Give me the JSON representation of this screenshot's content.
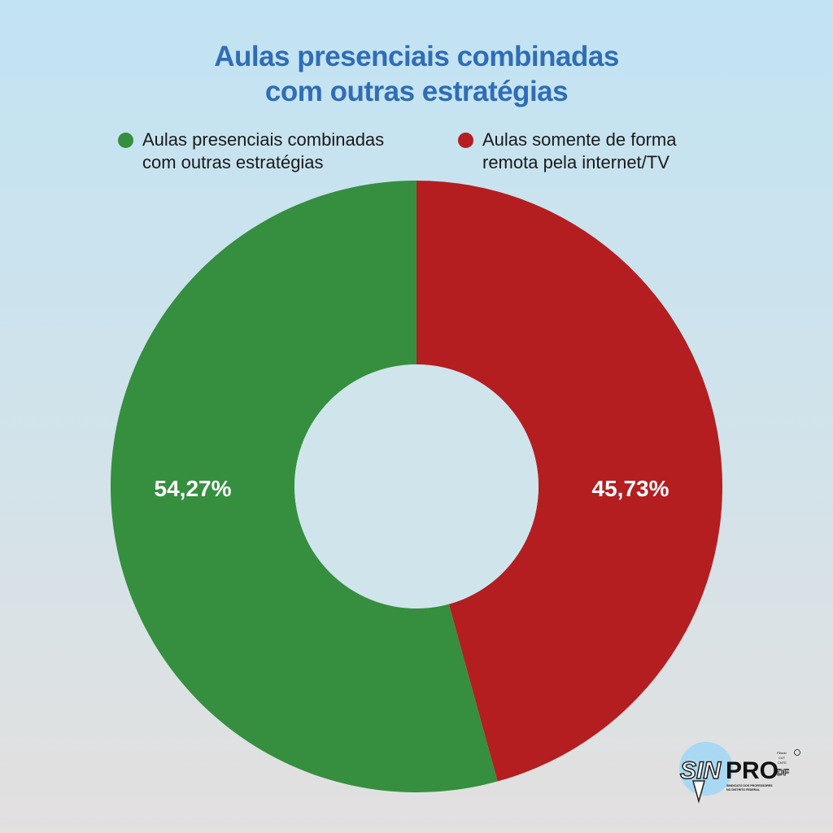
{
  "chart_data": {
    "type": "pie",
    "donut": true,
    "title": "Aulas presenciais combinadas com outras estratégias",
    "title_lines": [
      "Aulas presenciais combinadas",
      "com outras estratégias"
    ],
    "legend_position": "top",
    "slices": [
      {
        "label": "Aulas somente de forma remota pela internet/TV",
        "label_lines": [
          "Aulas somente de forma",
          "remota pela internet/TV"
        ],
        "value": 45.73,
        "value_label": "45,73%",
        "color": "#b41e21"
      },
      {
        "label": "Aulas presenciais combinadas com outras estratégias",
        "label_lines": [
          "Aulas presenciais combinadas",
          "com outras estratégias"
        ],
        "value": 54.27,
        "value_label": "54,27%",
        "color": "#358f3f"
      }
    ]
  },
  "logo": {
    "name": "SIN",
    "name2": "PRO",
    "region": "DF",
    "subtitle": "SINDICATO DOS PROFESSORES NO DISTRITO FEDERAL",
    "affiliation": "Filiado CUT CNTE"
  }
}
